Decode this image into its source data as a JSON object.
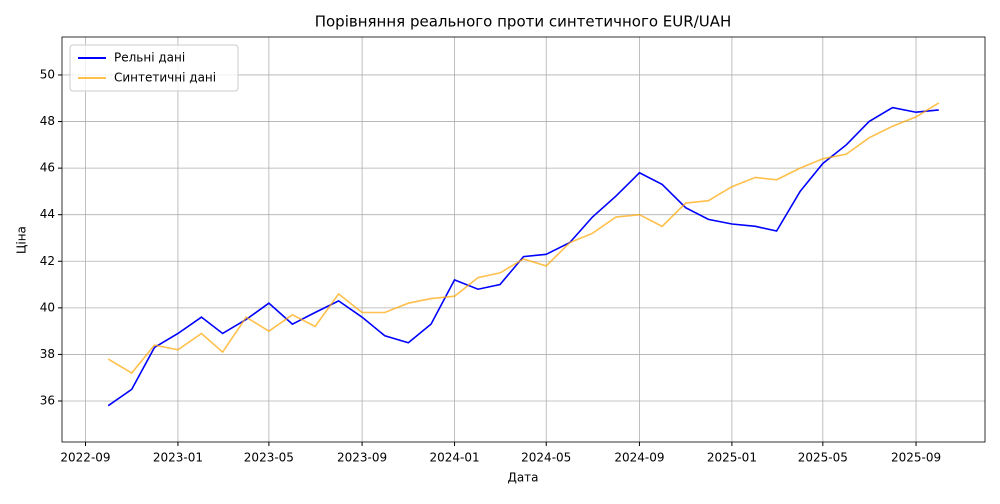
{
  "chart_data": {
    "type": "line",
    "title": "Порівняння реального проти синтетичного EUR/UAH",
    "xlabel": "Дата",
    "ylabel": "Ціна",
    "x": [
      "2022-10",
      "2022-11",
      "2022-12",
      "2023-01",
      "2023-02",
      "2023-03",
      "2023-04",
      "2023-05",
      "2023-06",
      "2023-07",
      "2023-08",
      "2023-09",
      "2023-10",
      "2023-11",
      "2023-12",
      "2024-01",
      "2024-02",
      "2024-03",
      "2024-04",
      "2024-05",
      "2024-06",
      "2024-07",
      "2024-08",
      "2024-09",
      "2024-10",
      "2024-11",
      "2024-12",
      "2025-01",
      "2025-02",
      "2025-03",
      "2025-04",
      "2025-05",
      "2025-06",
      "2025-07",
      "2025-08",
      "2025-09",
      "2025-10"
    ],
    "series": [
      {
        "name": "Рельні дані",
        "color": "#0000ff",
        "opacity": 1,
        "values": [
          35.8,
          36.5,
          38.3,
          38.9,
          39.6,
          38.9,
          39.5,
          40.2,
          39.3,
          39.8,
          40.3,
          39.6,
          38.8,
          38.5,
          39.3,
          41.2,
          40.8,
          41.0,
          42.2,
          42.3,
          42.8,
          43.9,
          44.8,
          45.8,
          45.3,
          44.3,
          43.8,
          43.6,
          43.5,
          43.3,
          45.0,
          46.2,
          47.0,
          48.0,
          48.6,
          48.4,
          48.5
        ]
      },
      {
        "name": "Синтетичні дані",
        "color": "#ffa500",
        "opacity": 0.7,
        "values": [
          37.8,
          37.2,
          38.4,
          38.2,
          38.9,
          38.1,
          39.6,
          39.0,
          39.7,
          39.2,
          40.6,
          39.8,
          39.8,
          40.2,
          40.4,
          40.5,
          41.3,
          41.5,
          42.1,
          41.8,
          42.8,
          43.2,
          43.9,
          44.0,
          43.5,
          44.5,
          44.6,
          45.2,
          45.6,
          45.5,
          46.0,
          46.4,
          46.6,
          47.3,
          47.8,
          48.2,
          48.8
        ]
      }
    ],
    "xlim": [
      "2022-08",
      "2025-12"
    ],
    "xticks": [
      "2022-09",
      "2023-01",
      "2023-05",
      "2023-09",
      "2024-01",
      "2024-05",
      "2024-09",
      "2025-01",
      "2025-05",
      "2025-09"
    ],
    "ylim": [
      34.24,
      51.63
    ],
    "yticks": [
      36,
      38,
      40,
      42,
      44,
      46,
      48,
      50
    ],
    "grid": true,
    "legend": "upper left"
  }
}
